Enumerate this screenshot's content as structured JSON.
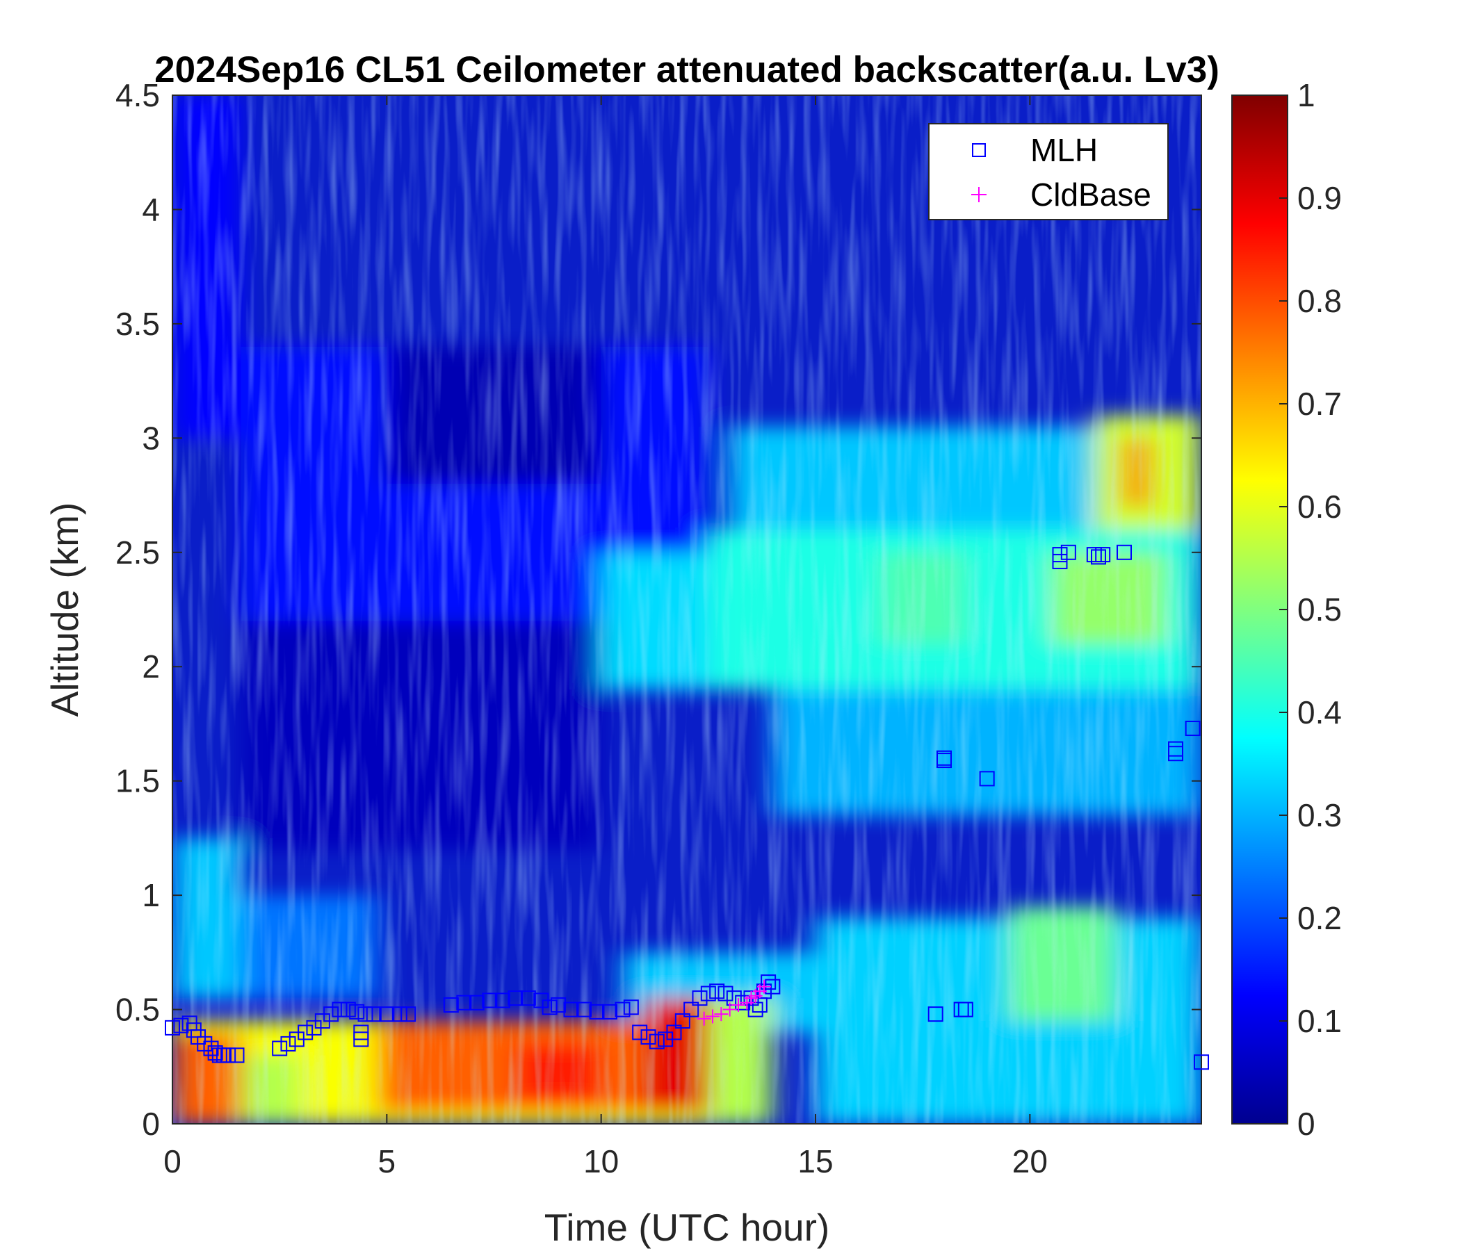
{
  "chart_data": {
    "type": "heatmap",
    "title": "2024Sep16 CL51 Ceilometer attenuated backscatter(a.u. Lv3)",
    "xlabel": "Time (UTC hour)",
    "ylabel": "Altitude (km)",
    "xlim": [
      0,
      24
    ],
    "ylim": [
      0,
      4.5
    ],
    "xticks": [
      "0",
      "5",
      "10",
      "15",
      "20"
    ],
    "yticks": [
      "0",
      "0.5",
      "1",
      "1.5",
      "2",
      "2.5",
      "3",
      "3.5",
      "4",
      "4.5"
    ],
    "colorbar": {
      "colormap": "jet",
      "clim": [
        0,
        1
      ],
      "ticks": [
        "0",
        "0.1",
        "0.2",
        "0.3",
        "0.4",
        "0.5",
        "0.6",
        "0.7",
        "0.8",
        "0.9",
        "1"
      ]
    },
    "legend": {
      "location": "top-right",
      "entries": [
        {
          "name": "MLH",
          "marker": "square",
          "color": "#0000ff"
        },
        {
          "name": "CldBase",
          "marker": "plus",
          "color": "#ff00ff"
        }
      ]
    },
    "series": [
      {
        "name": "MLH",
        "marker": "square",
        "color": "#0000ff",
        "points": [
          [
            0.0,
            0.42
          ],
          [
            0.2,
            0.43
          ],
          [
            0.4,
            0.44
          ],
          [
            0.5,
            0.41
          ],
          [
            0.6,
            0.38
          ],
          [
            0.75,
            0.35
          ],
          [
            0.9,
            0.33
          ],
          [
            1.0,
            0.31
          ],
          [
            1.1,
            0.3
          ],
          [
            1.2,
            0.3
          ],
          [
            1.3,
            0.3
          ],
          [
            1.5,
            0.3
          ],
          [
            2.5,
            0.33
          ],
          [
            2.7,
            0.35
          ],
          [
            2.9,
            0.37
          ],
          [
            3.1,
            0.4
          ],
          [
            3.3,
            0.42
          ],
          [
            3.5,
            0.45
          ],
          [
            3.7,
            0.48
          ],
          [
            3.9,
            0.5
          ],
          [
            4.1,
            0.5
          ],
          [
            4.3,
            0.49
          ],
          [
            4.5,
            0.48
          ],
          [
            4.4,
            0.4
          ],
          [
            4.4,
            0.37
          ],
          [
            4.7,
            0.48
          ],
          [
            5.0,
            0.48
          ],
          [
            5.3,
            0.48
          ],
          [
            5.5,
            0.48
          ],
          [
            6.5,
            0.52
          ],
          [
            6.8,
            0.53
          ],
          [
            7.1,
            0.53
          ],
          [
            7.4,
            0.54
          ],
          [
            7.7,
            0.54
          ],
          [
            8.0,
            0.55
          ],
          [
            8.3,
            0.55
          ],
          [
            8.6,
            0.54
          ],
          [
            8.8,
            0.51
          ],
          [
            9.0,
            0.52
          ],
          [
            9.3,
            0.5
          ],
          [
            9.6,
            0.5
          ],
          [
            9.9,
            0.49
          ],
          [
            10.2,
            0.49
          ],
          [
            10.5,
            0.5
          ],
          [
            10.7,
            0.51
          ],
          [
            10.9,
            0.4
          ],
          [
            11.1,
            0.38
          ],
          [
            11.3,
            0.36
          ],
          [
            11.5,
            0.37
          ],
          [
            11.7,
            0.4
          ],
          [
            11.9,
            0.45
          ],
          [
            12.1,
            0.5
          ],
          [
            12.3,
            0.55
          ],
          [
            12.5,
            0.57
          ],
          [
            12.7,
            0.58
          ],
          [
            12.9,
            0.57
          ],
          [
            13.1,
            0.55
          ],
          [
            13.3,
            0.53
          ],
          [
            13.5,
            0.55
          ],
          [
            13.6,
            0.5
          ],
          [
            13.7,
            0.52
          ],
          [
            13.8,
            0.58
          ],
          [
            13.9,
            0.62
          ],
          [
            14.0,
            0.6
          ],
          [
            17.8,
            0.48
          ],
          [
            18.0,
            1.59
          ],
          [
            18.0,
            1.6
          ],
          [
            18.4,
            0.5
          ],
          [
            18.5,
            0.5
          ],
          [
            19.0,
            1.51
          ],
          [
            20.7,
            2.46
          ],
          [
            20.7,
            2.49
          ],
          [
            20.9,
            2.5
          ],
          [
            21.5,
            2.49
          ],
          [
            21.6,
            2.48
          ],
          [
            21.7,
            2.49
          ],
          [
            22.2,
            2.5
          ],
          [
            23.4,
            1.62
          ],
          [
            23.4,
            1.64
          ],
          [
            23.8,
            1.73
          ],
          [
            24.0,
            0.27
          ]
        ]
      },
      {
        "name": "CldBase",
        "marker": "plus",
        "color": "#ff00ff",
        "points": [
          [
            12.4,
            0.46
          ],
          [
            12.6,
            0.47
          ],
          [
            12.8,
            0.48
          ],
          [
            13.0,
            0.5
          ],
          [
            13.2,
            0.52
          ],
          [
            13.4,
            0.53
          ],
          [
            13.5,
            0.55
          ],
          [
            13.6,
            0.56
          ],
          [
            13.7,
            0.58
          ],
          [
            13.8,
            0.6
          ]
        ]
      }
    ]
  }
}
